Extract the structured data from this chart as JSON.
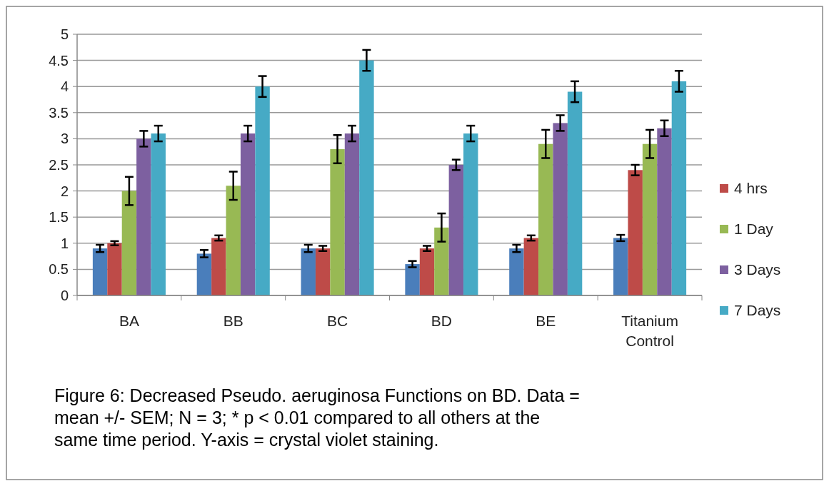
{
  "chart_data": {
    "type": "bar",
    "categories": [
      "BA",
      "BB",
      "BC",
      "BD",
      "BE",
      "Titanium Control"
    ],
    "series": [
      {
        "color": "#4a7ebb",
        "values": [
          0.9,
          0.8,
          0.9,
          0.6,
          0.9,
          1.1
        ],
        "errors": [
          0.07,
          0.07,
          0.07,
          0.06,
          0.07,
          0.06
        ]
      },
      {
        "name": "4 hrs",
        "color": "#be4b48",
        "values": [
          1.0,
          1.1,
          0.9,
          0.9,
          1.1,
          2.4
        ],
        "errors": [
          0.04,
          0.05,
          0.05,
          0.05,
          0.05,
          0.1
        ]
      },
      {
        "name": "1 Day",
        "color": "#98b954",
        "values": [
          2.0,
          2.1,
          2.8,
          1.3,
          2.9,
          2.9
        ],
        "errors": [
          0.27,
          0.27,
          0.27,
          0.27,
          0.27,
          0.27
        ]
      },
      {
        "name": "3 Days",
        "color": "#7d60a0",
        "values": [
          3.0,
          3.1,
          3.1,
          2.5,
          3.3,
          3.2
        ],
        "errors": [
          0.15,
          0.15,
          0.15,
          0.1,
          0.15,
          0.15
        ]
      },
      {
        "name": "7 Days",
        "color": "#46aac5",
        "values": [
          3.1,
          4.0,
          4.5,
          3.1,
          3.9,
          4.1
        ],
        "errors": [
          0.15,
          0.2,
          0.2,
          0.15,
          0.2,
          0.2
        ]
      }
    ],
    "ylim": [
      0,
      5
    ],
    "yticks": [
      0,
      0.5,
      1,
      1.5,
      2,
      2.5,
      3,
      3.5,
      4,
      4.5,
      5
    ],
    "grid": "y",
    "legend": "right",
    "annotations": [
      "Figure 6: Decreased Pseudo. aeruginosa Functions on BD. Data = mean +/- SEM; N = 3; * p < 0.01 compared to all others at the same time period. Y-axis = crystal violet staining."
    ]
  }
}
